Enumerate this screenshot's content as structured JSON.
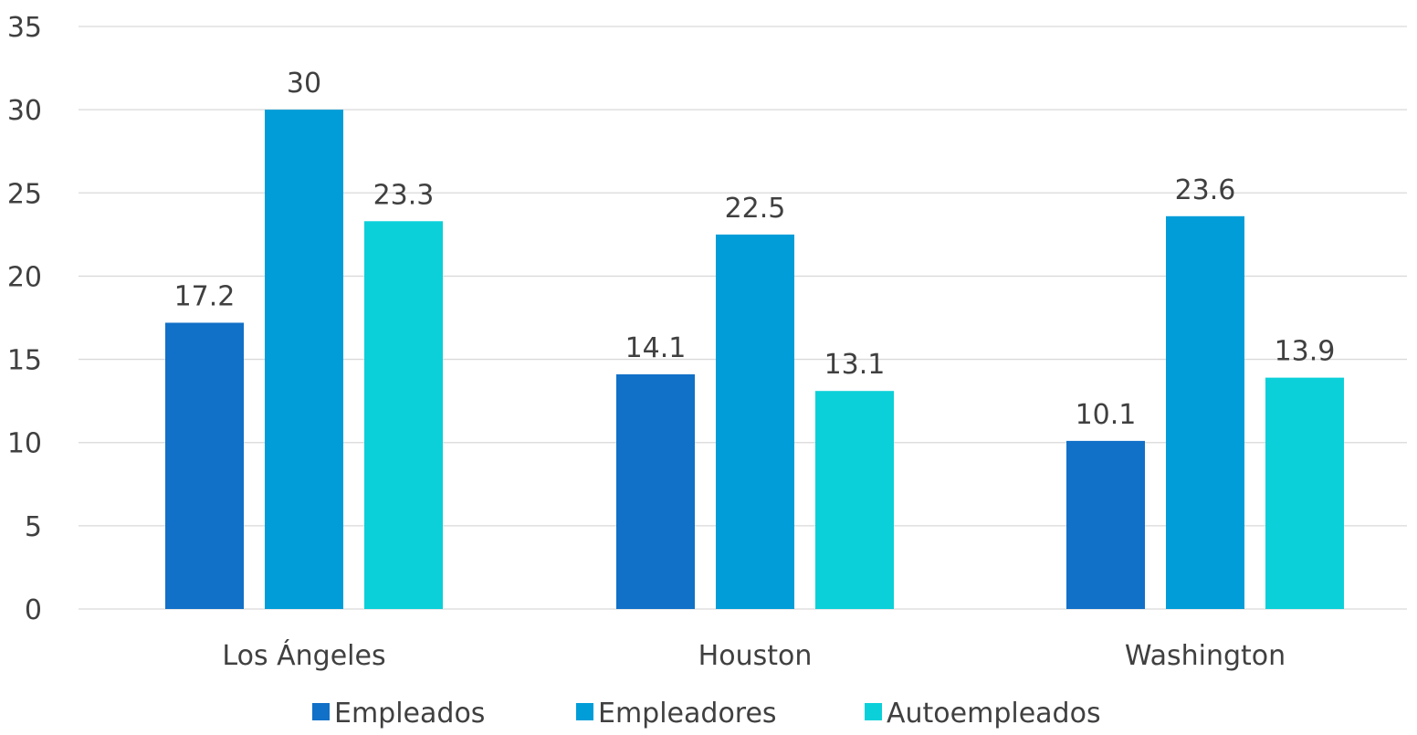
{
  "chart_data": {
    "type": "bar",
    "categories": [
      "Los Ángeles",
      "Houston",
      "Washington"
    ],
    "series": [
      {
        "name": "Empleados",
        "color": "#1170C8",
        "values": [
          17.2,
          14.1,
          10.1
        ]
      },
      {
        "name": "Empleadores",
        "color": "#009DD9",
        "values": [
          30,
          22.5,
          23.6
        ]
      },
      {
        "name": "Autoempleados",
        "color": "#0BD0D9",
        "values": [
          23.3,
          13.1,
          13.9
        ]
      }
    ],
    "title": "",
    "xlabel": "",
    "ylabel": "",
    "ylim": [
      0,
      35
    ],
    "yticks": [
      "0",
      "5",
      "10",
      "15",
      "20",
      "25",
      "30",
      "35"
    ],
    "data_labels": [
      [
        "17.2",
        "14.1",
        "10.1"
      ],
      [
        "30",
        "22.5",
        "23.6"
      ],
      [
        "23.3",
        "13.1",
        "13.9"
      ]
    ],
    "grid": true,
    "legend_position": "bottom"
  }
}
